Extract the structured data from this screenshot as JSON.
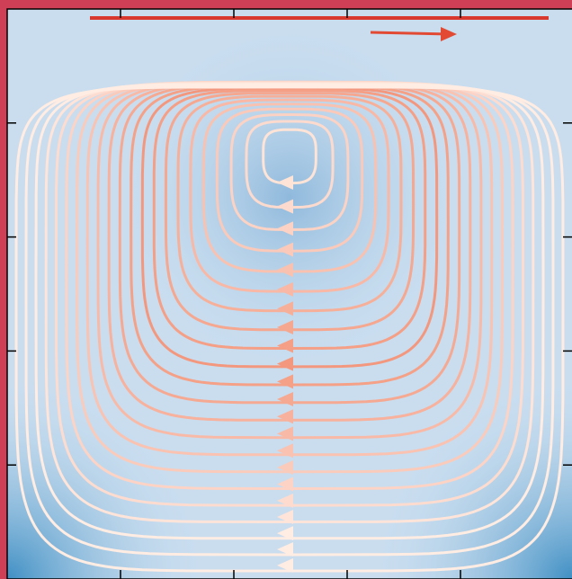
{
  "chart_data": {
    "type": "streamplot",
    "xlim": [
      0,
      1
    ],
    "ylim": [
      0,
      1
    ],
    "xticks": [
      0.2,
      0.4,
      0.6,
      0.8
    ],
    "yticks": [
      0.2,
      0.4,
      0.6,
      0.8
    ]
  }
}
